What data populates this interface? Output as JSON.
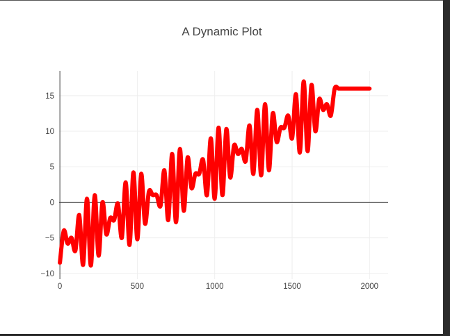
{
  "chart_data": {
    "type": "line",
    "title": "A Dynamic Plot",
    "xlabel": "",
    "ylabel": "",
    "xlim": [
      -5,
      2120
    ],
    "ylim": [
      -10.8,
      18.5
    ],
    "xticks": [
      0,
      500,
      1000,
      1500,
      2000
    ],
    "yticks": [
      -10,
      -5,
      0,
      5,
      10,
      15
    ],
    "xtick_labels": [
      "0",
      "500",
      "1000",
      "1500",
      "2000"
    ],
    "ytick_labels": [
      "−10",
      "−5",
      "0",
      "5",
      "10",
      "15"
    ],
    "grid": true,
    "legend": "none",
    "series": [
      {
        "color": "#ff0000",
        "x": [
          0,
          25,
          50,
          75,
          100,
          125,
          150,
          175,
          200,
          225,
          250,
          275,
          300,
          325,
          350,
          375,
          400,
          425,
          450,
          475,
          500,
          525,
          550,
          575,
          600,
          625,
          650,
          675,
          700,
          725,
          750,
          775,
          800,
          825,
          850,
          875,
          900,
          925,
          950,
          975,
          1000,
          1025,
          1050,
          1075,
          1100,
          1125,
          1150,
          1175,
          1200,
          1225,
          1250,
          1275,
          1300,
          1325,
          1350,
          1375,
          1400,
          1425,
          1450,
          1475,
          1500,
          1525,
          1550,
          1575,
          1600,
          1625,
          1650,
          1675,
          1700,
          1725,
          1750,
          1775,
          1800,
          1825,
          1850,
          1875,
          1900,
          1925,
          1950,
          1975,
          2000
        ],
        "y": [
          -8.5,
          -4.0,
          -5.8,
          -5.0,
          -6.8,
          -1.8,
          -8.8,
          0.5,
          -8.9,
          1.0,
          -7.5,
          0.0,
          -4.5,
          -2.2,
          -2.5,
          -0.2,
          -5.0,
          2.8,
          -6.0,
          4.2,
          -5.2,
          4.0,
          -3.0,
          1.5,
          1.0,
          1.0,
          -0.5,
          4.5,
          -2.5,
          6.8,
          -2.8,
          7.5,
          -1.2,
          6.3,
          2.0,
          4.0,
          4.0,
          6.0,
          1.0,
          9.0,
          0.5,
          10.5,
          1.0,
          10.3,
          3.5,
          8.0,
          6.8,
          7.5,
          5.8,
          10.8,
          4.0,
          13.0,
          3.8,
          13.8,
          4.5,
          12.5,
          8.5,
          10.5,
          10.5,
          12.2,
          9.0,
          15.2,
          7.0,
          17.0,
          7.2,
          16.5,
          10.0,
          14.5,
          13.0,
          13.8,
          12.2,
          16.0,
          16.0,
          16.0,
          16.0,
          16.0,
          16.0,
          16.0,
          16.0,
          16.0,
          16.0
        ]
      }
    ]
  }
}
